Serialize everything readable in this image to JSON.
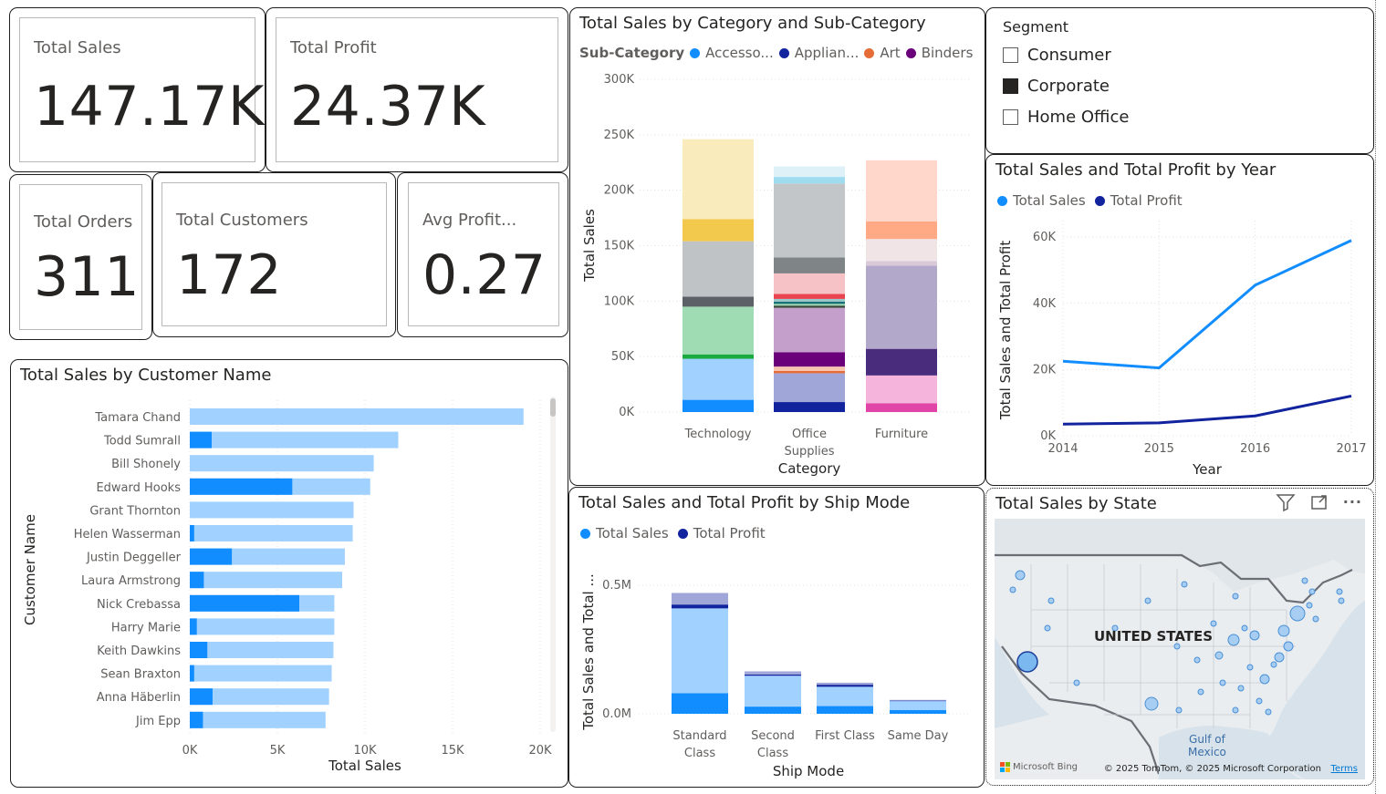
{
  "cards": {
    "total_sales": {
      "label": "Total Sales",
      "value": "147.17K"
    },
    "total_profit": {
      "label": "Total Profit",
      "value": "24.37K"
    },
    "total_orders": {
      "label": "Total Orders",
      "value": "311"
    },
    "total_customers": {
      "label": "Total Customers",
      "value": "172"
    },
    "avg_profit": {
      "label": "Avg Profit...",
      "value": "0.27"
    }
  },
  "category_chart": {
    "title": "Total Sales by Category and Sub-Category",
    "legend_title": "Sub-Category",
    "legend": [
      {
        "name": "Accesso...",
        "color": "#118dff"
      },
      {
        "name": "Applian...",
        "color": "#12239e"
      },
      {
        "name": "Art",
        "color": "#e66c37"
      },
      {
        "name": "Binders",
        "color": "#6b007b"
      }
    ],
    "xlabel": "Category",
    "ylabel": "Total Sales",
    "yticks": [
      "300K",
      "250K",
      "200K",
      "150K",
      "100K",
      "50K",
      "0K"
    ],
    "categories": [
      "Technology",
      "Office Supplies",
      "Furniture"
    ]
  },
  "segment_slicer": {
    "title": "Segment",
    "items": [
      {
        "label": "Consumer",
        "checked": false
      },
      {
        "label": "Corporate",
        "checked": true
      },
      {
        "label": "Home Office",
        "checked": false
      }
    ]
  },
  "year_chart": {
    "title": "Total Sales and Total Profit by Year",
    "xlabel": "Year",
    "ylabel": "Total Sales and Total Profit",
    "legend": [
      {
        "name": "Total Sales",
        "color": "#118dff"
      },
      {
        "name": "Total Profit",
        "color": "#12239e"
      }
    ],
    "yticks": [
      "60K",
      "40K",
      "20K",
      "0K"
    ],
    "xticks": [
      "2014",
      "2015",
      "2016",
      "2017"
    ]
  },
  "customer_chart": {
    "title": "Total Sales by Customer Name",
    "xlabel": "Total Sales",
    "ylabel": "Customer Name",
    "xticks": [
      "0K",
      "5K",
      "10K",
      "15K",
      "20K"
    ]
  },
  "shipmode_chart": {
    "title": "Total Sales and Total Profit by Ship Mode",
    "legend": [
      {
        "name": "Total Sales",
        "color": "#118dff"
      },
      {
        "name": "Total Profit",
        "color": "#12239e"
      }
    ],
    "xlabel": "Ship Mode",
    "ylabel": "Total Sales and Total ...",
    "yticks": [
      "0.5M",
      "0.0M"
    ]
  },
  "map": {
    "title": "Total Sales by State",
    "country_label": "UNITED STATES",
    "gulf_label": "Gulf of\nMexico",
    "bing": "Microsoft Bing",
    "copyright": "© 2025 TomTom, © 2025 Microsoft Corporation",
    "terms": "Terms"
  },
  "chart_data": [
    {
      "type": "bar",
      "orientation": "stacked-vertical",
      "title": "Total Sales by Category and Sub-Category",
      "xlabel": "Category",
      "ylabel": "Total Sales",
      "ylim": [
        0,
        300000
      ],
      "categories": [
        "Technology",
        "Office Supplies",
        "Furniture"
      ],
      "segments": [
        [
          {
            "v": 11000,
            "c": "#118dff"
          },
          {
            "v": 37000,
            "c": "#a0d1ff"
          },
          {
            "v": 4000,
            "c": "#1aab40"
          },
          {
            "v": 43000,
            "c": "#a0dcb3"
          },
          {
            "v": 9000,
            "c": "#5c6167"
          },
          {
            "v": 50000,
            "c": "#bfc3c5"
          },
          {
            "v": 20000,
            "c": "#f2c94c"
          },
          {
            "v": 72000,
            "c": "#faebbc"
          }
        ],
        [
          {
            "v": 9000,
            "c": "#12239e"
          },
          {
            "v": 26000,
            "c": "#a0a7d8"
          },
          {
            "v": 2000,
            "c": "#e66c37"
          },
          {
            "v": 4000,
            "c": "#f7c5af"
          },
          {
            "v": 13000,
            "c": "#6b007b"
          },
          {
            "v": 40000,
            "c": "#c59fcb"
          },
          {
            "v": 2000,
            "c": "#3a4a3a"
          },
          {
            "v": 1500,
            "c": "#a0dcb3"
          },
          {
            "v": 2000,
            "c": "#197278"
          },
          {
            "v": 2500,
            "c": "#99c6c8"
          },
          {
            "v": 4500,
            "c": "#e9444f"
          },
          {
            "v": 18500,
            "c": "#f7c2c5"
          },
          {
            "v": 14500,
            "c": "#7f8587"
          },
          {
            "v": 66500,
            "c": "#c2c6c8"
          },
          {
            "v": 6000,
            "c": "#9fdcf0"
          },
          {
            "v": 9500,
            "c": "#dff1f8"
          }
        ],
        [
          {
            "v": 8000,
            "c": "#e044a7"
          },
          {
            "v": 25000,
            "c": "#f4b4dc"
          },
          {
            "v": 24000,
            "c": "#4a2c7c"
          },
          {
            "v": 75000,
            "c": "#b2a8c9"
          },
          {
            "v": 4000,
            "c": "#d9c8d8"
          },
          {
            "v": 20000,
            "c": "#f0e4e6"
          },
          {
            "v": 16000,
            "c": "#ffaa85"
          },
          {
            "v": 55000,
            "c": "#ffd8cb"
          }
        ]
      ]
    },
    {
      "type": "line",
      "title": "Total Sales and Total Profit by Year",
      "x": [
        2014,
        2015,
        2016,
        2017
      ],
      "ylim": [
        0,
        65000
      ],
      "series": [
        {
          "name": "Total Sales",
          "color": "#118dff",
          "values": [
            22500,
            20500,
            45500,
            59000
          ]
        },
        {
          "name": "Total Profit",
          "color": "#12239e",
          "values": [
            3500,
            3900,
            6000,
            12000
          ]
        }
      ]
    },
    {
      "type": "bar",
      "orientation": "horizontal",
      "title": "Total Sales by Customer Name",
      "xlim": [
        0,
        21000
      ],
      "categories": [
        "Tamara Chand",
        "Todd Sumrall",
        "Bill Shonely",
        "Edward Hooks",
        "Grant Thornton",
        "Helen Wasserman",
        "Justin Deggeller",
        "Laura Armstrong",
        "Nick Crebassa",
        "Harry Marie",
        "Keith Dawkins",
        "Sean Braxton",
        "Anna Häberlin",
        "Jim Epp"
      ],
      "series": [
        {
          "values": [
            19050,
            11900,
            10500,
            10300,
            9350,
            9300,
            8850,
            8700,
            8250,
            8250,
            8200,
            8100,
            7950,
            7750
          ],
          "color": "#a0d1ff"
        },
        {
          "values": [
            0,
            1250,
            0,
            5850,
            0,
            250,
            2400,
            800,
            6250,
            400,
            1000,
            250,
            1300,
            750
          ],
          "color": "#118dff"
        }
      ]
    },
    {
      "type": "bar",
      "orientation": "stacked-vertical",
      "title": "Total Sales and Total Profit by Ship Mode",
      "categories": [
        "Standard Class",
        "Second Class",
        "First Class",
        "Same Day"
      ],
      "ylim": [
        0,
        0.65
      ],
      "segments": [
        [
          {
            "v": 0.08,
            "c": "#118dff"
          },
          {
            "v": 0.33,
            "c": "#a0d1ff"
          },
          {
            "v": 0.015,
            "c": "#12239e"
          },
          {
            "v": 0.045,
            "c": "#a0a7d8"
          }
        ],
        [
          {
            "v": 0.028,
            "c": "#118dff"
          },
          {
            "v": 0.12,
            "c": "#a0d1ff"
          },
          {
            "v": 0.005,
            "c": "#12239e"
          },
          {
            "v": 0.012,
            "c": "#a0a7d8"
          }
        ],
        [
          {
            "v": 0.03,
            "c": "#118dff"
          },
          {
            "v": 0.075,
            "c": "#a0d1ff"
          },
          {
            "v": 0.008,
            "c": "#12239e"
          },
          {
            "v": 0.008,
            "c": "#a0a7d8"
          }
        ],
        [
          {
            "v": 0.015,
            "c": "#118dff"
          },
          {
            "v": 0.035,
            "c": "#a0d1ff"
          },
          {
            "v": 0.001,
            "c": "#12239e"
          },
          {
            "v": 0.003,
            "c": "#a0a7d8"
          }
        ]
      ]
    }
  ]
}
